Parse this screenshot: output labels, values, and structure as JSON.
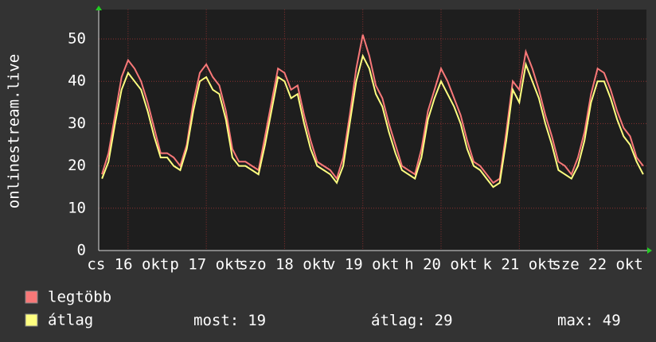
{
  "chart_data": {
    "type": "line",
    "y_label": "onlinestream.live",
    "categories": [
      null,
      null,
      null,
      null,
      "cs 16 okt",
      null,
      null,
      null,
      null,
      null,
      null,
      null,
      null,
      null,
      null,
      null,
      "p 17 okt",
      null,
      null,
      null,
      null,
      null,
      null,
      null,
      null,
      null,
      null,
      null,
      "szo 18 okt",
      null,
      null,
      null,
      null,
      null,
      null,
      null,
      null,
      null,
      null,
      null,
      "v 19 okt",
      null,
      null,
      null,
      null,
      null,
      null,
      null,
      null,
      null,
      null,
      null,
      "h 20 okt",
      null,
      null,
      null,
      null,
      null,
      null,
      null,
      null,
      null,
      null,
      null,
      "k 21 okt",
      null,
      null,
      null,
      null,
      null,
      null,
      null,
      null,
      null,
      null,
      null,
      "sze 22 okt",
      null,
      null,
      null,
      null,
      null,
      null,
      null
    ],
    "series": [
      {
        "name": "legtöbb",
        "color": "#f87878",
        "values": [
          18,
          23,
          32,
          41,
          45,
          43,
          40,
          35,
          29,
          23,
          23,
          22,
          20,
          25,
          35,
          42,
          44,
          41,
          39,
          33,
          24,
          21,
          21,
          20,
          19,
          27,
          35,
          43,
          42,
          38,
          39,
          32,
          26,
          21,
          20,
          19,
          17,
          22,
          32,
          43,
          51,
          46,
          39,
          36,
          30,
          25,
          20,
          19,
          18,
          24,
          33,
          38,
          43,
          40,
          36,
          32,
          26,
          21,
          20,
          18,
          16,
          17,
          28,
          40,
          38,
          47,
          43,
          38,
          32,
          27,
          21,
          20,
          18,
          22,
          28,
          37,
          43,
          42,
          38,
          33,
          29,
          27,
          22,
          20
        ]
      },
      {
        "name": "átlag",
        "color": "#ffff80",
        "values": [
          17,
          21,
          30,
          38,
          42,
          40,
          38,
          33,
          27,
          22,
          22,
          20,
          19,
          24,
          33,
          40,
          41,
          38,
          37,
          31,
          22,
          20,
          20,
          19,
          18,
          25,
          33,
          41,
          40,
          36,
          37,
          30,
          24,
          20,
          19,
          18,
          16,
          20,
          30,
          40,
          46,
          43,
          37,
          34,
          28,
          23,
          19,
          18,
          17,
          22,
          31,
          36,
          40,
          37,
          34,
          30,
          24,
          20,
          19,
          17,
          15,
          16,
          26,
          38,
          35,
          44,
          40,
          36,
          30,
          25,
          19,
          18,
          17,
          20,
          26,
          35,
          40,
          40,
          36,
          31,
          27,
          25,
          21,
          18
        ]
      }
    ],
    "ylim": [
      0,
      57
    ],
    "yticks": [
      0,
      10,
      20,
      30,
      40,
      50
    ],
    "grid": true,
    "stats": [
      {
        "label": "most:",
        "value": 19
      },
      {
        "label": "átlag:",
        "value": 29
      },
      {
        "label": "max:",
        "value": 49
      }
    ]
  }
}
